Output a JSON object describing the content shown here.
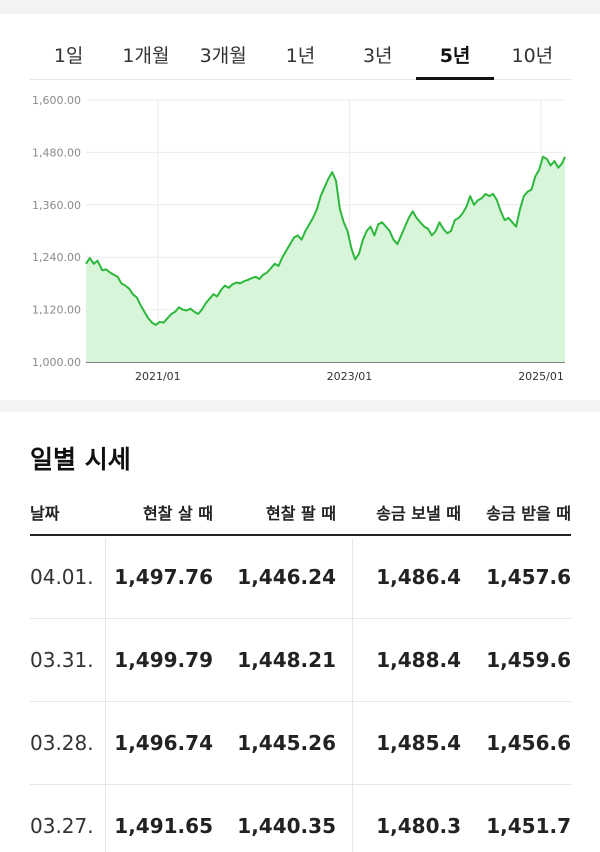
{
  "tabs": [
    {
      "label": "1일",
      "active": false
    },
    {
      "label": "1개월",
      "active": false
    },
    {
      "label": "3개월",
      "active": false
    },
    {
      "label": "1년",
      "active": false
    },
    {
      "label": "3년",
      "active": false
    },
    {
      "label": "5년",
      "active": true
    },
    {
      "label": "10년",
      "active": false
    }
  ],
  "chart_data": {
    "type": "area",
    "title": "",
    "xlabel": "",
    "ylabel": "",
    "ylim": [
      1000,
      1600
    ],
    "y_ticks": [
      "1,600.00",
      "1,480.00",
      "1,360.00",
      "1,240.00",
      "1,120.00",
      "1,000.00"
    ],
    "y_tick_values": [
      1600,
      1480,
      1360,
      1240,
      1120,
      1000
    ],
    "x_ticks": [
      "2021/01",
      "2023/01",
      "2025/01"
    ],
    "x_tick_values": [
      2021.0,
      2023.0,
      2025.0
    ],
    "xlim": [
      2020.25,
      2025.25
    ],
    "grid": true,
    "legend": "none",
    "line_color": "#2db83d",
    "fill_color": "#d9f5d9",
    "series": [
      {
        "x": [
          2020.25,
          2020.29,
          2020.33,
          2020.37,
          2020.42,
          2020.46,
          2020.5,
          2020.54,
          2020.58,
          2020.62,
          2020.66,
          2020.7,
          2020.74,
          2020.78,
          2020.82,
          2020.86,
          2020.9,
          2020.94,
          2020.98,
          2021.02,
          2021.06,
          2021.1,
          2021.14,
          2021.18,
          2021.22,
          2021.26,
          2021.3,
          2021.34,
          2021.38,
          2021.42,
          2021.46,
          2021.5,
          2021.54,
          2021.58,
          2021.62,
          2021.66,
          2021.7,
          2021.74,
          2021.78,
          2021.82,
          2021.86,
          2021.9,
          2021.94,
          2021.98,
          2022.02,
          2022.06,
          2022.1,
          2022.14,
          2022.18,
          2022.22,
          2022.26,
          2022.3,
          2022.34,
          2022.38,
          2022.42,
          2022.46,
          2022.5,
          2022.54,
          2022.58,
          2022.62,
          2022.66,
          2022.7,
          2022.74,
          2022.78,
          2022.82,
          2022.86,
          2022.9,
          2022.94,
          2022.98,
          2023.02,
          2023.06,
          2023.1,
          2023.14,
          2023.18,
          2023.22,
          2023.26,
          2023.3,
          2023.34,
          2023.38,
          2023.42,
          2023.46,
          2023.5,
          2023.54,
          2023.58,
          2023.62,
          2023.66,
          2023.7,
          2023.74,
          2023.78,
          2023.82,
          2023.86,
          2023.9,
          2023.94,
          2023.98,
          2024.02,
          2024.06,
          2024.1,
          2024.14,
          2024.18,
          2024.22,
          2024.26,
          2024.3,
          2024.34,
          2024.38,
          2024.42,
          2024.46,
          2024.5,
          2024.54,
          2024.58,
          2024.62,
          2024.66,
          2024.7,
          2024.74,
          2024.78,
          2024.82,
          2024.86,
          2024.9,
          2024.94,
          2024.98,
          2025.02,
          2025.06,
          2025.1,
          2025.14,
          2025.18,
          2025.22,
          2025.25
        ],
        "values": [
          1225,
          1238,
          1225,
          1232,
          1210,
          1212,
          1205,
          1200,
          1195,
          1180,
          1175,
          1168,
          1155,
          1148,
          1130,
          1115,
          1100,
          1090,
          1085,
          1092,
          1090,
          1100,
          1110,
          1115,
          1125,
          1120,
          1118,
          1122,
          1115,
          1110,
          1120,
          1135,
          1145,
          1155,
          1150,
          1165,
          1175,
          1170,
          1178,
          1182,
          1180,
          1185,
          1188,
          1192,
          1195,
          1190,
          1200,
          1205,
          1215,
          1225,
          1220,
          1240,
          1255,
          1270,
          1285,
          1290,
          1280,
          1300,
          1315,
          1330,
          1350,
          1380,
          1400,
          1420,
          1435,
          1415,
          1350,
          1320,
          1300,
          1260,
          1235,
          1248,
          1280,
          1300,
          1310,
          1290,
          1315,
          1320,
          1310,
          1300,
          1280,
          1270,
          1290,
          1310,
          1330,
          1345,
          1330,
          1320,
          1310,
          1305,
          1290,
          1300,
          1320,
          1305,
          1295,
          1300,
          1325,
          1330,
          1340,
          1355,
          1380,
          1360,
          1370,
          1375,
          1385,
          1380,
          1385,
          1370,
          1345,
          1325,
          1330,
          1320,
          1310,
          1350,
          1380,
          1390,
          1395,
          1425,
          1440,
          1470,
          1465,
          1450,
          1460,
          1445,
          1455,
          1470
        ]
      }
    ]
  },
  "section_title": "일별 시세",
  "table": {
    "headers": [
      "날짜",
      "현찰 살 때",
      "현찰 팔 때",
      "송금 보낼 때",
      "송금 받을 때"
    ],
    "rows": [
      [
        "04.01.",
        "1,497.76",
        "1,446.24",
        "1,486.4",
        "1,457.6"
      ],
      [
        "03.31.",
        "1,499.79",
        "1,448.21",
        "1,488.4",
        "1,459.6"
      ],
      [
        "03.28.",
        "1,496.74",
        "1,445.26",
        "1,485.4",
        "1,456.6"
      ],
      [
        "03.27.",
        "1,491.65",
        "1,440.35",
        "1,480.3",
        "1,451.7"
      ]
    ]
  }
}
